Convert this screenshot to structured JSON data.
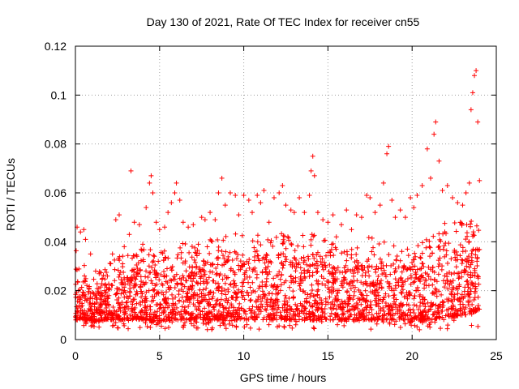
{
  "chart_data": {
    "type": "scatter",
    "title": "Day 130 of 2021, Rate Of TEC Index for receiver cn55",
    "xlabel": "GPS time / hours",
    "ylabel": "ROTI / TECUs",
    "xlim": [
      0,
      25
    ],
    "ylim": [
      0,
      0.12
    ],
    "xticks": [
      0,
      5,
      10,
      15,
      20,
      25
    ],
    "xtick_labels": [
      "0",
      "5",
      "10",
      "15",
      "20",
      "25"
    ],
    "yticks": [
      0,
      0.02,
      0.04,
      0.06,
      0.08,
      0.1,
      0.12
    ],
    "ytick_labels": [
      "0",
      "0.02",
      "0.04",
      "0.06",
      "0.08",
      "0.1",
      "0.12"
    ],
    "grid": true,
    "marker": "+",
    "color": "#ff0000",
    "series": [
      {
        "name": "ROTI",
        "points": [
          [
            0.1,
            0.046
          ],
          [
            0.3,
            0.044
          ],
          [
            0.5,
            0.045
          ],
          [
            0.6,
            0.041
          ],
          [
            0.9,
            0.035
          ],
          [
            1.2,
            0.028
          ],
          [
            1.6,
            0.025
          ],
          [
            1.9,
            0.026
          ],
          [
            2.1,
            0.031
          ],
          [
            2.2,
            0.035
          ],
          [
            2.4,
            0.049
          ],
          [
            2.6,
            0.051
          ],
          [
            2.9,
            0.038
          ],
          [
            3.2,
            0.043
          ],
          [
            3.3,
            0.069
          ],
          [
            3.5,
            0.048
          ],
          [
            3.8,
            0.047
          ],
          [
            4.0,
            0.039
          ],
          [
            4.2,
            0.054
          ],
          [
            4.4,
            0.064
          ],
          [
            4.5,
            0.067
          ],
          [
            4.6,
            0.06
          ],
          [
            4.8,
            0.048
          ],
          [
            5.0,
            0.045
          ],
          [
            5.3,
            0.046
          ],
          [
            5.5,
            0.052
          ],
          [
            5.7,
            0.056
          ],
          [
            5.9,
            0.06
          ],
          [
            6.0,
            0.064
          ],
          [
            6.2,
            0.057
          ],
          [
            6.4,
            0.048
          ],
          [
            6.7,
            0.046
          ],
          [
            7.0,
            0.047
          ],
          [
            7.3,
            0.039
          ],
          [
            7.5,
            0.05
          ],
          [
            7.7,
            0.049
          ],
          [
            8.0,
            0.052
          ],
          [
            8.3,
            0.049
          ],
          [
            8.5,
            0.06
          ],
          [
            8.7,
            0.066
          ],
          [
            8.9,
            0.055
          ],
          [
            9.2,
            0.06
          ],
          [
            9.5,
            0.059
          ],
          [
            9.7,
            0.051
          ],
          [
            10.0,
            0.059
          ],
          [
            10.3,
            0.057
          ],
          [
            10.5,
            0.052
          ],
          [
            10.8,
            0.059
          ],
          [
            11.0,
            0.056
          ],
          [
            11.2,
            0.061
          ],
          [
            11.5,
            0.048
          ],
          [
            11.8,
            0.058
          ],
          [
            12.1,
            0.06
          ],
          [
            12.3,
            0.063
          ],
          [
            12.5,
            0.055
          ],
          [
            12.8,
            0.053
          ],
          [
            13.0,
            0.052
          ],
          [
            13.3,
            0.058
          ],
          [
            13.6,
            0.052
          ],
          [
            13.9,
            0.059
          ],
          [
            14.0,
            0.069
          ],
          [
            14.1,
            0.075
          ],
          [
            14.2,
            0.067
          ],
          [
            14.4,
            0.052
          ],
          [
            14.7,
            0.049
          ],
          [
            15.0,
            0.048
          ],
          [
            15.3,
            0.051
          ],
          [
            15.5,
            0.042
          ],
          [
            15.8,
            0.047
          ],
          [
            16.1,
            0.053
          ],
          [
            16.4,
            0.045
          ],
          [
            16.7,
            0.051
          ],
          [
            17.0,
            0.05
          ],
          [
            17.3,
            0.059
          ],
          [
            17.5,
            0.058
          ],
          [
            17.8,
            0.052
          ],
          [
            18.1,
            0.055
          ],
          [
            18.3,
            0.064
          ],
          [
            18.5,
            0.076
          ],
          [
            18.6,
            0.079
          ],
          [
            18.8,
            0.057
          ],
          [
            19.0,
            0.05
          ],
          [
            19.3,
            0.053
          ],
          [
            19.6,
            0.05
          ],
          [
            19.9,
            0.058
          ],
          [
            20.1,
            0.054
          ],
          [
            20.3,
            0.059
          ],
          [
            20.6,
            0.063
          ],
          [
            20.9,
            0.078
          ],
          [
            21.1,
            0.066
          ],
          [
            21.3,
            0.084
          ],
          [
            21.4,
            0.089
          ],
          [
            21.6,
            0.073
          ],
          [
            21.8,
            0.061
          ],
          [
            22.1,
            0.063
          ],
          [
            22.4,
            0.058
          ],
          [
            22.7,
            0.056
          ],
          [
            23.0,
            0.055
          ],
          [
            23.2,
            0.06
          ],
          [
            23.4,
            0.064
          ],
          [
            23.5,
            0.094
          ],
          [
            23.6,
            0.101
          ],
          [
            23.7,
            0.108
          ],
          [
            23.8,
            0.11
          ],
          [
            23.9,
            0.089
          ],
          [
            24.0,
            0.065
          ]
        ],
        "band": {
          "upper": [
            [
              0,
              0.03
            ],
            [
              1,
              0.02
            ],
            [
              2,
              0.024
            ],
            [
              3,
              0.028
            ],
            [
              4,
              0.03
            ],
            [
              5,
              0.028
            ],
            [
              6,
              0.033
            ],
            [
              7,
              0.03
            ],
            [
              8,
              0.033
            ],
            [
              9,
              0.035
            ],
            [
              10,
              0.036
            ],
            [
              11,
              0.035
            ],
            [
              12,
              0.036
            ],
            [
              13,
              0.034
            ],
            [
              14,
              0.036
            ],
            [
              15,
              0.032
            ],
            [
              16,
              0.03
            ],
            [
              17,
              0.034
            ],
            [
              18,
              0.035
            ],
            [
              19,
              0.03
            ],
            [
              20,
              0.03
            ],
            [
              21,
              0.036
            ],
            [
              22,
              0.042
            ],
            [
              23,
              0.04
            ],
            [
              24,
              0.042
            ]
          ],
          "lower": [
            [
              0,
              0.009
            ],
            [
              1,
              0.007
            ],
            [
              2,
              0.008
            ],
            [
              3,
              0.008
            ],
            [
              4,
              0.008
            ],
            [
              5,
              0.007
            ],
            [
              6,
              0.008
            ],
            [
              7,
              0.008
            ],
            [
              8,
              0.008
            ],
            [
              9,
              0.008
            ],
            [
              10,
              0.008
            ],
            [
              11,
              0.008
            ],
            [
              12,
              0.008
            ],
            [
              13,
              0.008
            ],
            [
              14,
              0.008
            ],
            [
              15,
              0.008
            ],
            [
              16,
              0.008
            ],
            [
              17,
              0.008
            ],
            [
              18,
              0.008
            ],
            [
              19,
              0.008
            ],
            [
              20,
              0.008
            ],
            [
              21,
              0.008
            ],
            [
              22,
              0.009
            ],
            [
              23,
              0.01
            ],
            [
              24,
              0.012
            ]
          ],
          "floor": 0.004,
          "density_per_hour": 110
        }
      }
    ]
  }
}
